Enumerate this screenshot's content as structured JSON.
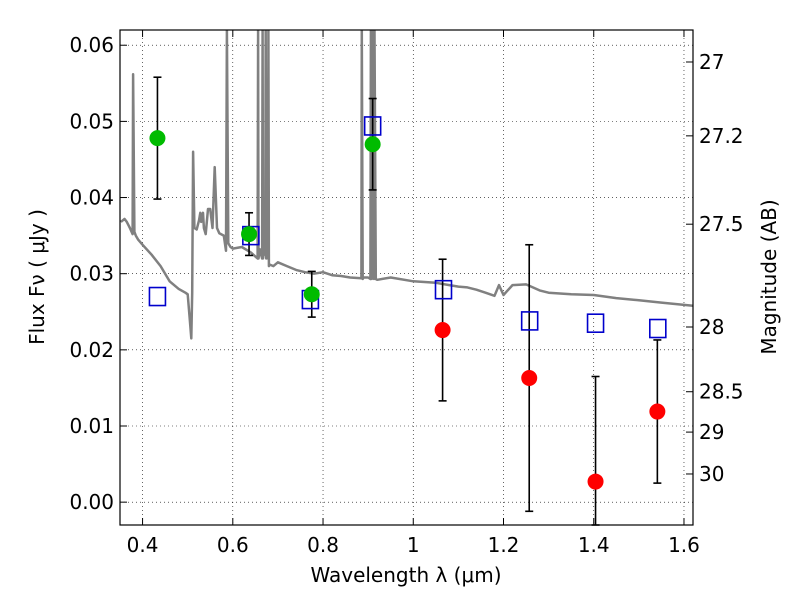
{
  "chart_data": {
    "type": "scatter",
    "title": "",
    "xlabel": "Wavelength  λ (μm)",
    "ylabel": "Flux  Fν  ( μJy )",
    "y2label": "Magnitude (AB)",
    "xlim": [
      0.35,
      1.62
    ],
    "ylim": [
      -0.003,
      0.062
    ],
    "grid": true,
    "x_ticks": [
      0.4,
      0.6,
      0.8,
      1.0,
      1.2,
      1.4,
      1.6
    ],
    "x_tick_labels": [
      "0.4",
      "0.6",
      "0.8",
      "1",
      "1.2",
      "1.4",
      "1.6"
    ],
    "y_ticks": [
      0.0,
      0.01,
      0.02,
      0.03,
      0.04,
      0.05,
      0.06
    ],
    "y_tick_labels": [
      "0.00",
      "0.01",
      "0.02",
      "0.03",
      "0.04",
      "0.05",
      "0.06"
    ],
    "y2_ticks": [
      {
        "label": "27",
        "flux": 0.0578
      },
      {
        "label": "27.2",
        "flux": 0.0481
      },
      {
        "label": "27.5",
        "flux": 0.0365
      },
      {
        "label": "28",
        "flux": 0.023
      },
      {
        "label": "28.5",
        "flux": 0.0145
      },
      {
        "label": "29",
        "flux": 0.0092
      },
      {
        "label": "30",
        "flux": 0.0037
      }
    ],
    "series": [
      {
        "kind": "line",
        "color": "#808080",
        "x": [
          0.352,
          0.36,
          0.365,
          0.372,
          0.378,
          0.379,
          0.382,
          0.385,
          0.39,
          0.4,
          0.42,
          0.44,
          0.46,
          0.48,
          0.495,
          0.5,
          0.505,
          0.508,
          0.51,
          0.512,
          0.515,
          0.52,
          0.525,
          0.528,
          0.53,
          0.534,
          0.536,
          0.54,
          0.545,
          0.55,
          0.555,
          0.56,
          0.565,
          0.57,
          0.58,
          0.585,
          0.587,
          0.59,
          0.595,
          0.6,
          0.62,
          0.64,
          0.655,
          0.656,
          0.657,
          0.66,
          0.665,
          0.666,
          0.667,
          0.67,
          0.672,
          0.673,
          0.674,
          0.676,
          0.678,
          0.679,
          0.68,
          0.682,
          0.69,
          0.7,
          0.72,
          0.74,
          0.76,
          0.78,
          0.8,
          0.82,
          0.84,
          0.86,
          0.885,
          0.886,
          0.888,
          0.89,
          0.9,
          0.905,
          0.906,
          0.908,
          0.91,
          0.913,
          0.914,
          0.917,
          0.92,
          0.95,
          1.0,
          1.05,
          1.08,
          1.1,
          1.12,
          1.14,
          1.16,
          1.18,
          1.19,
          1.2,
          1.22,
          1.25,
          1.28,
          1.3,
          1.35,
          1.4,
          1.45,
          1.5,
          1.55,
          1.62
        ],
        "y": [
          0.0368,
          0.0372,
          0.0368,
          0.036,
          0.0352,
          0.0562,
          0.0355,
          0.035,
          0.0345,
          0.0338,
          0.0325,
          0.031,
          0.029,
          0.028,
          0.0275,
          0.0273,
          0.0238,
          0.0215,
          0.0275,
          0.046,
          0.036,
          0.0358,
          0.037,
          0.038,
          0.0368,
          0.038,
          0.036,
          0.0352,
          0.0385,
          0.0385,
          0.036,
          0.044,
          0.036,
          0.0353,
          0.035,
          0.033,
          0.062,
          0.034,
          0.0335,
          0.0333,
          0.0335,
          0.0328,
          0.032,
          0.062,
          0.032,
          0.0332,
          0.032,
          0.062,
          0.032,
          0.0333,
          0.0325,
          0.062,
          0.032,
          0.0325,
          0.032,
          0.062,
          0.031,
          0.0312,
          0.031,
          0.0315,
          0.031,
          0.0305,
          0.0302,
          0.03,
          0.0302,
          0.0298,
          0.0297,
          0.0295,
          0.0294,
          0.062,
          0.0293,
          0.0295,
          0.0295,
          0.0293,
          0.062,
          0.0293,
          0.062,
          0.0293,
          0.062,
          0.0293,
          0.0292,
          0.0295,
          0.029,
          0.0288,
          0.0285,
          0.0283,
          0.0282,
          0.0279,
          0.0275,
          0.0271,
          0.0285,
          0.0272,
          0.0285,
          0.0286,
          0.0278,
          0.0275,
          0.0273,
          0.0272,
          0.0268,
          0.0265,
          0.0262,
          0.0258
        ]
      },
      {
        "kind": "square",
        "color": "#0000cc",
        "x": [
          0.433,
          0.64,
          0.772,
          0.91,
          1.067,
          1.258,
          1.404,
          1.542
        ],
        "y": [
          0.027,
          0.035,
          0.0266,
          0.0494,
          0.0279,
          0.0238,
          0.0235,
          0.0228
        ]
      },
      {
        "kind": "point",
        "color": "#00bb00",
        "x": [
          0.433,
          0.636,
          0.775,
          0.91
        ],
        "y": [
          0.0478,
          0.0352,
          0.0273,
          0.047
        ],
        "err": [
          0.008,
          0.0028,
          0.003,
          0.006
        ]
      },
      {
        "kind": "point",
        "color": "#ff0000",
        "x": [
          1.065,
          1.257,
          1.404,
          1.541
        ],
        "y": [
          0.0226,
          0.0163,
          0.0027,
          0.0119
        ],
        "err": [
          0.0093,
          0.0175,
          0.0138,
          0.0094
        ]
      }
    ]
  }
}
